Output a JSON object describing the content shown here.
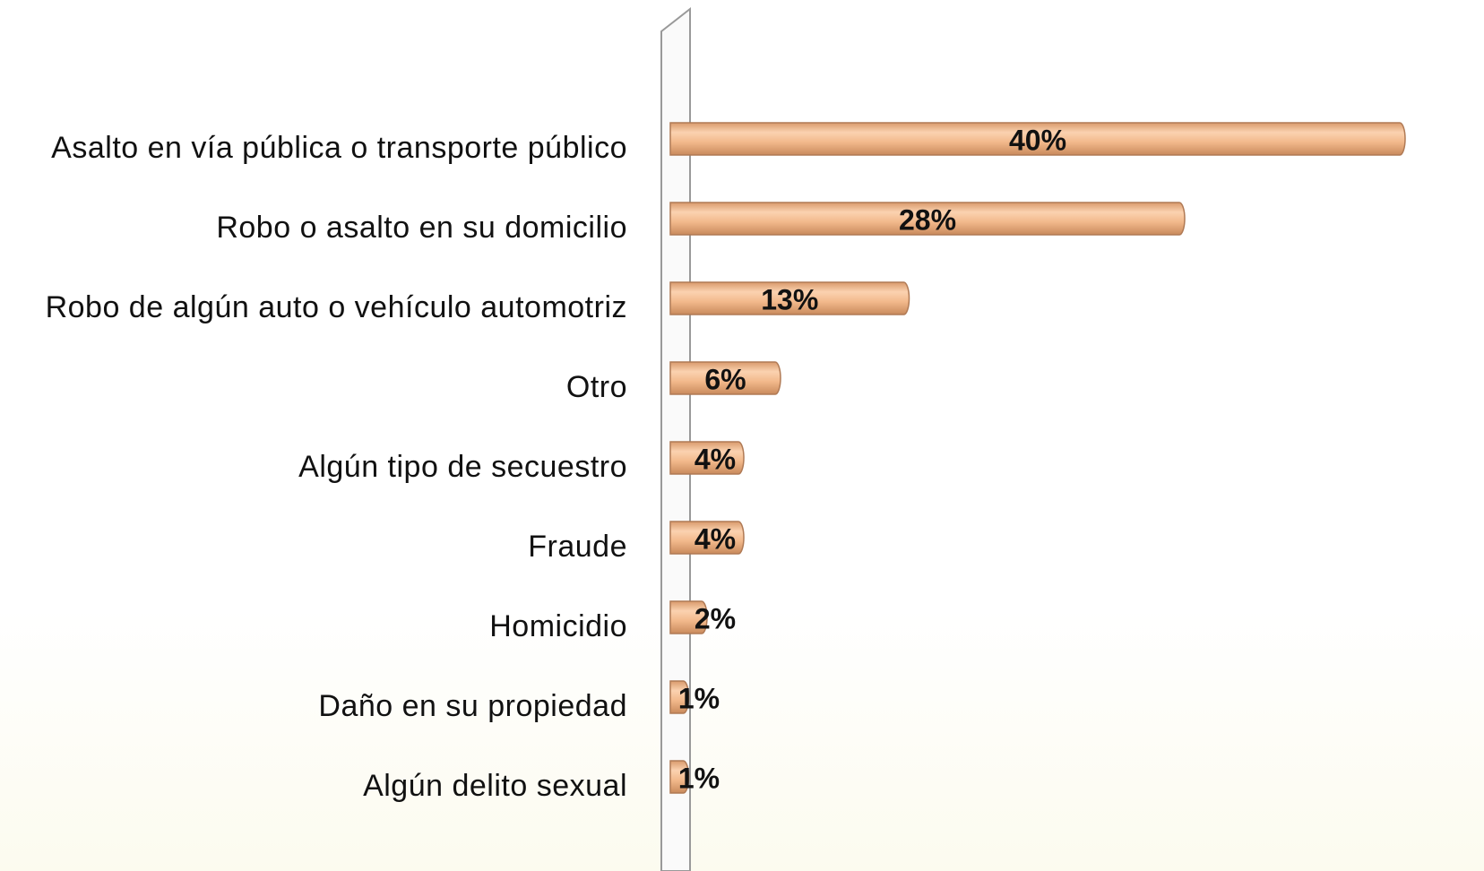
{
  "chart_data": {
    "type": "bar",
    "orientation": "horizontal",
    "categories": [
      "Asalto en vía pública o transporte público",
      "Robo o asalto en su domicilio",
      "Robo de algún auto o vehículo automotriz",
      "Otro",
      "Algún tipo de secuestro",
      "Fraude",
      "Homicidio",
      "Daño en su propiedad",
      "Algún delito sexual"
    ],
    "values": [
      40,
      28,
      13,
      6,
      4,
      4,
      2,
      1,
      1
    ],
    "value_labels": [
      "40%",
      "28%",
      "13%",
      "6%",
      "4%",
      "4%",
      "2%",
      "1%",
      "1%"
    ],
    "color": "#f2b98c"
  }
}
